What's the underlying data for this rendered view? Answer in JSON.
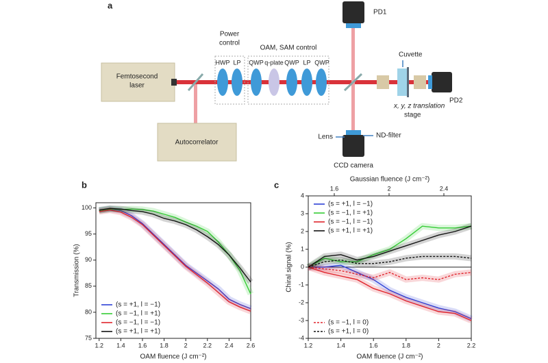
{
  "diagram": {
    "panel": "a",
    "laser": [
      "Femtosecond",
      "laser"
    ],
    "autocorrelator": "Autocorrelator",
    "power_control": [
      "Power",
      "control"
    ],
    "power_optics": [
      "HWP",
      "LP"
    ],
    "oam_sam_control": "OAM, SAM control",
    "oam_optics": [
      "QWP",
      "q-plate",
      "QWP",
      "LP",
      "QWP"
    ],
    "pd1": "PD1",
    "pd2": "PD2",
    "cuvette": "Cuvette",
    "stage": [
      "x, y, z translation",
      "stage"
    ],
    "lens": "Lens",
    "nd_filter": "ND-filter",
    "camera": "CCD camera"
  },
  "chart_data": [
    {
      "type": "line",
      "panel": "b",
      "xlabel": "OAM fluence (J cm⁻²)",
      "ylabel": "Transmission (%)",
      "x": [
        1.2,
        1.3,
        1.4,
        1.5,
        1.6,
        1.7,
        1.8,
        1.9,
        2.0,
        2.1,
        2.2,
        2.3,
        2.4,
        2.5,
        2.6
      ],
      "xlim": [
        1.17,
        2.6
      ],
      "xticks": [
        1.2,
        1.4,
        1.6,
        1.8,
        2.0,
        2.2,
        2.4,
        2.6
      ],
      "ylim": [
        75,
        101
      ],
      "yticks": [
        75,
        80,
        85,
        90,
        95,
        100
      ],
      "legend": "lower left",
      "series": [
        {
          "name": "(s = +1, l = −1)",
          "color": "#2b3fd6",
          "values": [
            99.5,
            99.8,
            99.5,
            98.5,
            97,
            95,
            93,
            91,
            89,
            87.5,
            86,
            84.5,
            82.5,
            81.5,
            80.7
          ]
        },
        {
          "name": "(s = −1, l = +1)",
          "color": "#33cc33",
          "values": [
            99.5,
            99.8,
            99.7,
            99.8,
            99.7,
            99.4,
            98.8,
            98.2,
            97.3,
            96.5,
            95.5,
            93.5,
            91,
            88,
            83.5
          ]
        },
        {
          "name": "(s = −1, l = −1)",
          "color": "#e0242c",
          "values": [
            99.3,
            99.6,
            99.2,
            98.2,
            96.8,
            94.8,
            92.8,
            90.8,
            88.8,
            87.2,
            85.6,
            83.8,
            82,
            81,
            80.2
          ]
        },
        {
          "name": "(s = +1, l = +1)",
          "color": "#111111",
          "values": [
            99.6,
            99.9,
            99.8,
            99.5,
            99.3,
            98.8,
            98,
            97.5,
            96.8,
            95.8,
            94.5,
            93,
            91,
            88.5,
            85.8
          ]
        }
      ]
    },
    {
      "type": "line",
      "panel": "c",
      "xlabel": "OAM fluence (J cm⁻²)",
      "ylabel": "Chiral signal (%)",
      "x2label": "Gaussian fluence (J cm⁻²)",
      "x": [
        1.2,
        1.3,
        1.4,
        1.5,
        1.6,
        1.7,
        1.8,
        1.9,
        2.0,
        2.1,
        2.2
      ],
      "xlim": [
        1.2,
        2.2
      ],
      "xticks": [
        1.2,
        1.4,
        1.6,
        1.8,
        2.0,
        2.2
      ],
      "x2lim": [
        1.41,
        2.6
      ],
      "x2ticks": [
        1.6,
        2.0,
        2.4
      ],
      "ylim": [
        -4,
        4
      ],
      "yticks": [
        -4,
        -3,
        -2,
        -1,
        0,
        1,
        2,
        3,
        4
      ],
      "legend": "upper left",
      "series": [
        {
          "name": "(s = +1, l = −1)",
          "color": "#2b3fd6",
          "values": [
            0,
            0,
            0.1,
            -0.3,
            -0.7,
            -1.3,
            -1.7,
            -2,
            -2.3,
            -2.5,
            -2.9
          ]
        },
        {
          "name": "(s = −1, l = +1)",
          "color": "#33cc33",
          "values": [
            0,
            0.5,
            0.3,
            0.3,
            0.7,
            1,
            1.6,
            2.3,
            2.2,
            2.2,
            2.3
          ]
        },
        {
          "name": "(s = −1, l = −1)",
          "color": "#e0242c",
          "values": [
            0,
            -0.3,
            -0.5,
            -0.7,
            -1.2,
            -1.5,
            -1.9,
            -2.2,
            -2.5,
            -2.6,
            -3
          ]
        },
        {
          "name": "(s = +1, l = +1)",
          "color": "#111111",
          "values": [
            0,
            0.6,
            0.7,
            0.4,
            0.6,
            0.9,
            1.2,
            1.5,
            1.8,
            2,
            2.3
          ]
        },
        {
          "name": "(s = −1, l = 0)",
          "color": "#e0242c",
          "dashed": true,
          "legend": "lower left",
          "values": [
            0,
            -0.1,
            -0.2,
            -0.4,
            -0.6,
            -0.3,
            -0.7,
            -0.6,
            -0.7,
            -0.4,
            -0.3
          ]
        },
        {
          "name": "(s = +1, l = 0)",
          "color": "#111111",
          "dashed": true,
          "legend": "lower left",
          "values": [
            0,
            0.3,
            0.4,
            0.2,
            0.2,
            0.3,
            0.5,
            0.6,
            0.6,
            0.6,
            0.5
          ]
        }
      ]
    }
  ]
}
